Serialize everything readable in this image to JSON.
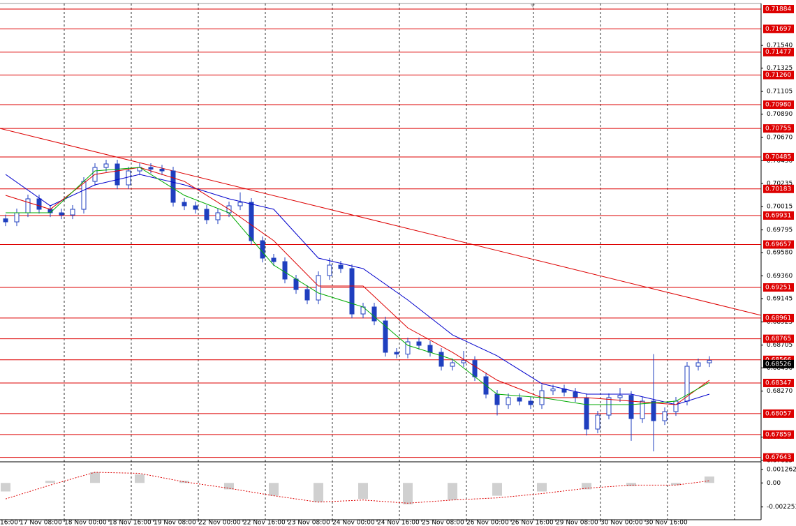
{
  "chart_data": {
    "type": "candlestick",
    "ylim": [
      0.67601,
      0.71937
    ],
    "yticks": [
      {
        "value": 0.7154,
        "label": "0.71540"
      },
      0.71325,
      0.71105,
      {
        "value": 0.7089,
        "label": "0.70890"
      },
      {
        "value": 0.7067,
        "label": "0.70670"
      },
      {
        "value": 0.7045,
        "label": "0.70450"
      },
      0.70235,
      0.70015,
      0.69795,
      {
        "value": 0.6958,
        "label": "0.69580"
      },
      {
        "value": 0.6936,
        "label": "0.69360"
      },
      0.69145,
      0.68925,
      0.68705,
      {
        "value": 0.6849,
        "label": "0.68490"
      },
      {
        "value": 0.6827,
        "label": "0.68270"
      },
      0.67835,
      0.67615
    ],
    "levels": [
      0.71884,
      0.71697,
      0.71477,
      {
        "value": 0.7126,
        "label": "0.71260"
      },
      {
        "value": 0.7098,
        "label": "0.70980"
      },
      0.70755,
      0.70485,
      0.70183,
      0.69931,
      0.69657,
      0.69251,
      0.68961,
      0.68765,
      0.68566,
      0.68347,
      0.68057,
      0.67859,
      0.67643
    ],
    "current_price": 0.68526,
    "x_labels": [
      "16:00",
      "17 Nov 08:00",
      "18 Nov 00:00",
      "18 Nov 16:00",
      "19 Nov 08:00",
      "22 Nov 00:00",
      "22 Nov 16:00",
      "23 Nov 08:00",
      "24 Nov 00:00",
      "24 Nov 16:00",
      "25 Nov 08:00",
      "26 Nov 00:00",
      "26 Nov 16:00",
      "29 Nov 08:00",
      "30 Nov 00:00",
      "30 Nov 16:00"
    ],
    "open": [
      0.699,
      0.69871,
      0.69957,
      0.70089,
      0.6999,
      0.69957,
      0.69937,
      0.6999,
      0.70254,
      0.70386,
      0.70419,
      0.70221,
      0.70353,
      0.70386,
      0.7037,
      0.70353,
      0.70056,
      0.70023,
      0.6999,
      0.69891,
      0.69957,
      0.70023,
      0.70056,
      0.69693,
      0.69528,
      0.69495,
      0.6933,
      0.69231,
      0.69132,
      0.69363,
      0.69462,
      0.69429,
      0.69,
      0.69066,
      0.68934,
      0.68637,
      0.6862,
      0.68736,
      0.68703,
      0.68637,
      0.68505,
      0.68538,
      0.6856,
      0.68406,
      0.68241,
      0.68142,
      0.68208,
      0.68175,
      0.68142,
      0.68274,
      0.6829,
      0.6826,
      0.68208,
      0.67911,
      0.68043,
      0.68208,
      0.6823,
      0.6801,
      0.68175,
      0.6799,
      0.68076,
      0.68175,
      0.68505,
      0.68538
    ],
    "high": [
      0.6994,
      0.69997,
      0.70129,
      0.70129,
      0.7003,
      0.69997,
      0.7003,
      0.70294,
      0.70426,
      0.70459,
      0.70459,
      0.70393,
      0.70426,
      0.70426,
      0.7041,
      0.70393,
      0.70096,
      0.70063,
      0.7003,
      0.69997,
      0.70063,
      0.7015,
      0.70096,
      0.69733,
      0.69568,
      0.69535,
      0.6937,
      0.69271,
      0.69403,
      0.6953,
      0.69502,
      0.69469,
      0.69106,
      0.69106,
      0.68974,
      0.68677,
      0.68776,
      0.68776,
      0.68743,
      0.68677,
      0.68578,
      0.6865,
      0.686,
      0.68446,
      0.68281,
      0.68248,
      0.68248,
      0.68215,
      0.6833,
      0.6833,
      0.6833,
      0.683,
      0.68248,
      0.68083,
      0.68248,
      0.683,
      0.6827,
      0.68215,
      0.6862,
      0.68116,
      0.68215,
      0.68545,
      0.68578,
      0.686
    ],
    "low": [
      0.69831,
      0.69831,
      0.69917,
      0.6995,
      0.69917,
      0.69897,
      0.69897,
      0.6995,
      0.70214,
      0.70346,
      0.70181,
      0.70181,
      0.70313,
      0.7033,
      0.70313,
      0.70016,
      0.69983,
      0.6995,
      0.69851,
      0.69851,
      0.69917,
      0.69983,
      0.69653,
      0.69488,
      0.69455,
      0.6929,
      0.69191,
      0.69092,
      0.69092,
      0.69323,
      0.69389,
      0.6896,
      0.6896,
      0.68894,
      0.68597,
      0.6858,
      0.6858,
      0.68663,
      0.68597,
      0.68465,
      0.68465,
      0.68498,
      0.68366,
      0.68201,
      0.6804,
      0.68102,
      0.68135,
      0.68102,
      0.68102,
      0.68234,
      0.6822,
      0.68168,
      0.6785,
      0.67871,
      0.68003,
      0.68168,
      0.678,
      0.6797,
      0.677,
      0.6795,
      0.68036,
      0.68135,
      0.68465,
      0.68498
    ],
    "close": [
      0.69871,
      0.69957,
      0.70089,
      0.6999,
      0.69957,
      0.69937,
      0.6999,
      0.70254,
      0.70386,
      0.70419,
      0.70221,
      0.70353,
      0.70386,
      0.7037,
      0.70353,
      0.70056,
      0.70023,
      0.6999,
      0.69891,
      0.69957,
      0.70023,
      0.70056,
      0.69693,
      0.69528,
      0.69495,
      0.6933,
      0.69231,
      0.69132,
      0.69363,
      0.69462,
      0.69429,
      0.69,
      0.69066,
      0.68934,
      0.68637,
      0.6862,
      0.68736,
      0.68703,
      0.68637,
      0.68505,
      0.68538,
      0.6856,
      0.68406,
      0.68241,
      0.68142,
      0.68208,
      0.68175,
      0.68142,
      0.68274,
      0.6829,
      0.6826,
      0.68208,
      0.67911,
      0.68043,
      0.68208,
      0.6823,
      0.6801,
      0.68175,
      0.6799,
      0.68076,
      0.68175,
      0.68505,
      0.68538,
      0.6856
    ],
    "ma_index": [
      0,
      4,
      8,
      12,
      16,
      20,
      24,
      28,
      32,
      36,
      40,
      44,
      48,
      52,
      56,
      60,
      63
    ],
    "series": [
      {
        "color": "#0000cc",
        "values": [
          0.7032,
          0.70023,
          0.70221,
          0.7032,
          0.70221,
          0.70089,
          0.6999,
          0.69528,
          0.69429,
          0.69132,
          0.68802,
          0.68604,
          0.6834,
          0.68241,
          0.68241,
          0.68142,
          0.68241
        ]
      },
      {
        "color": "#dd0000",
        "values": [
          0.70122,
          0.6999,
          0.7032,
          0.70386,
          0.70254,
          0.6999,
          0.69693,
          0.69264,
          0.69264,
          0.68868,
          0.68637,
          0.68373,
          0.68208,
          0.68208,
          0.68175,
          0.68142,
          0.68373
        ]
      },
      {
        "color": "#00aa00",
        "values": [
          0.69957,
          0.69957,
          0.70353,
          0.70386,
          0.70122,
          0.69957,
          0.69462,
          0.69198,
          0.69066,
          0.68703,
          0.68571,
          0.68241,
          0.68208,
          0.68142,
          0.68142,
          0.68175,
          0.68353
        ]
      }
    ],
    "trend_line": [
      0.70755,
      0.68987
    ],
    "oscillator": {
      "ylim": [
        -0.00345,
        0.00198
      ],
      "yticks": [
        0.001262,
        {
          "value": 0,
          "label": "0.00"
        },
        -0.002253
      ],
      "histogram": [
        -0.0008,
        0.0002,
        0.001,
        0.0008,
        0.0002,
        -0.0006,
        -0.0012,
        -0.0018,
        -0.0015,
        -0.002,
        -0.0016,
        -0.0012,
        -0.0008,
        -0.0006,
        -0.0003,
        -0.0002,
        0.0006
      ],
      "signal": [
        -0.0015,
        -0.0002,
        0.001,
        0.0009,
        0.0001,
        -0.0005,
        -0.0012,
        -0.0018,
        -0.0016,
        -0.0019,
        -0.0016,
        -0.0014,
        -0.001,
        -0.0005,
        -0.0002,
        -0.0002,
        0.0002
      ]
    }
  }
}
